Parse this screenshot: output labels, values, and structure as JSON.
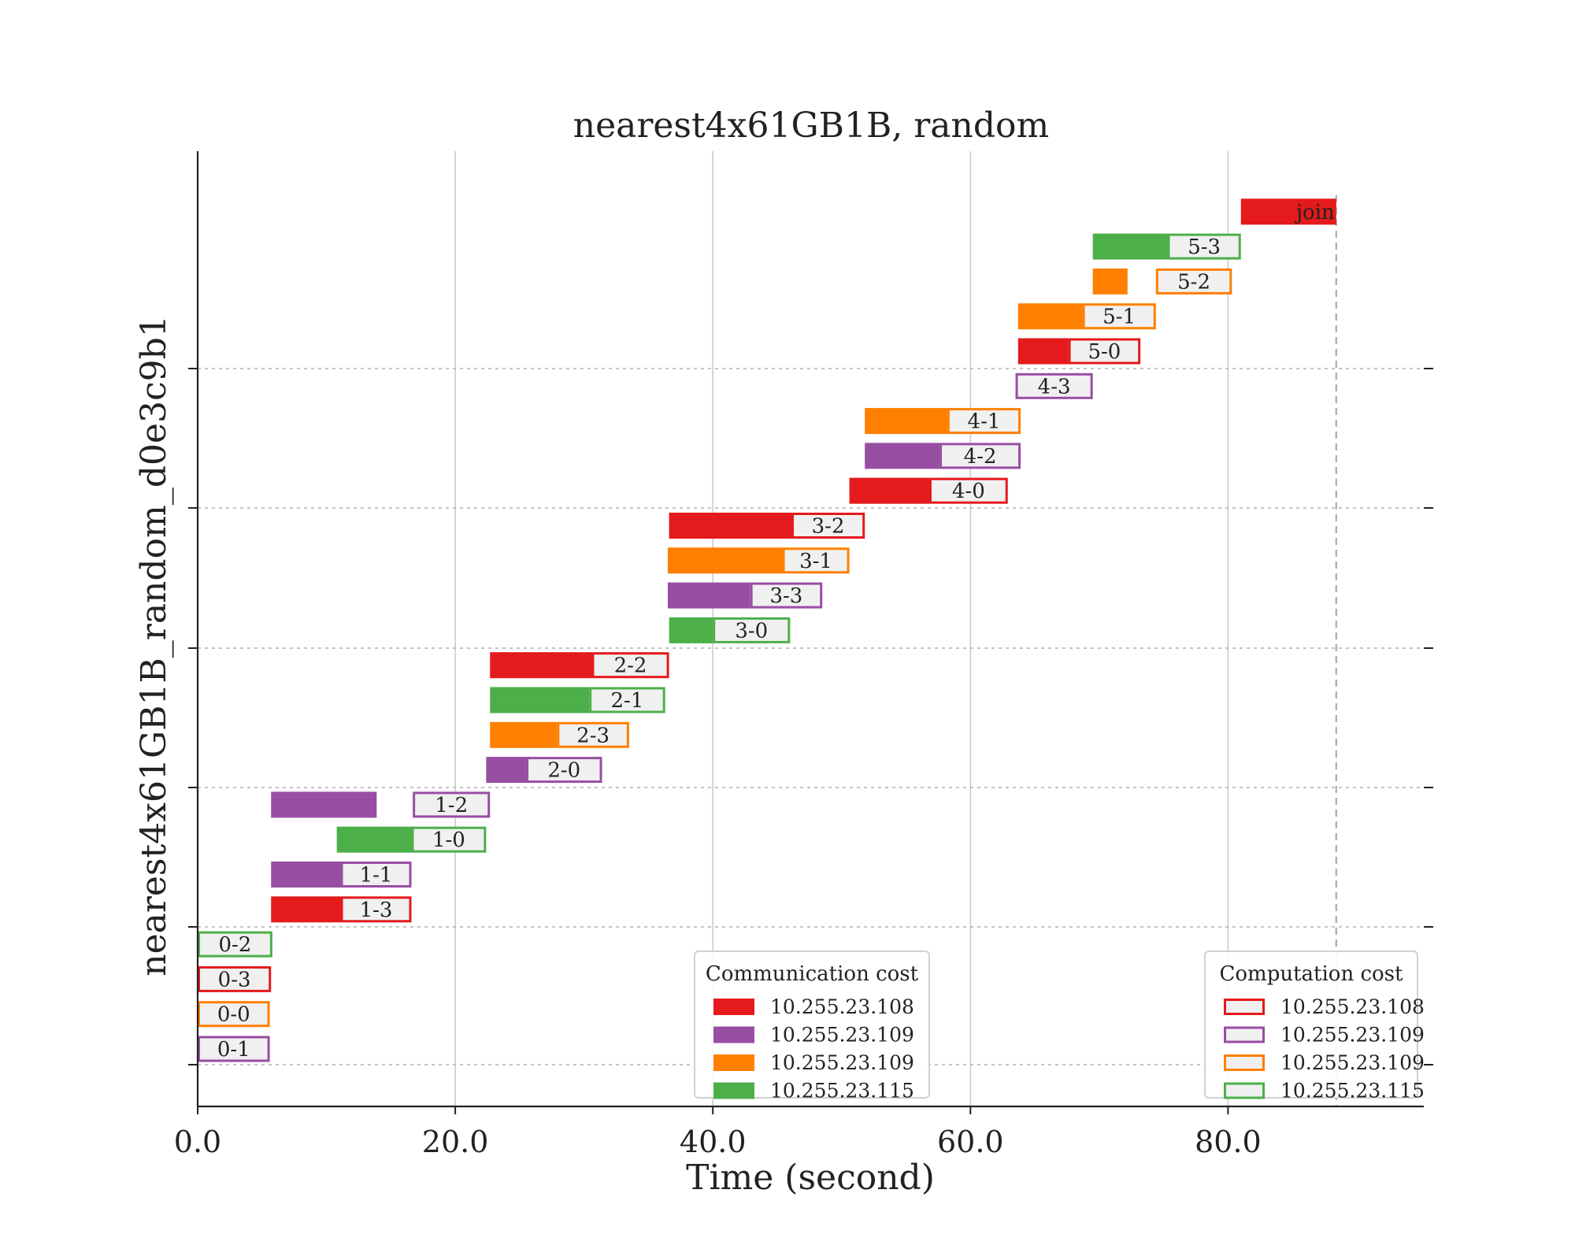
{
  "chart_data": {
    "type": "gantt",
    "title": "nearest4x61GB1B, random",
    "xlabel": "Time (second)",
    "ylabel": "nearest4x61GB1B_random_d0e3c9b1",
    "xlim": [
      0,
      95.2
    ],
    "xticks": [
      0,
      20,
      40,
      60,
      80
    ],
    "xtick_labels": [
      "0.0",
      "20.0",
      "40.0",
      "60.0",
      "80.0"
    ],
    "grid": {
      "x": "solid",
      "y": "dashed"
    },
    "end_time_marker": 88.4,
    "hosts": [
      {
        "id": "h108",
        "name": "10.255.23.108",
        "color": "#e41a1c"
      },
      {
        "id": "h109p",
        "name": "10.255.23.109",
        "color": "#984ea3"
      },
      {
        "id": "h109o",
        "name": "10.255.23.109",
        "color": "#ff7f00"
      },
      {
        "id": "h115",
        "name": "10.255.23.115",
        "color": "#4daf4a"
      }
    ],
    "tasks": [
      {
        "label": "0-1",
        "host": "h109p",
        "comm": [
          0.0,
          0.0
        ],
        "comp": [
          0.0,
          5.6
        ]
      },
      {
        "label": "0-0",
        "host": "h109o",
        "comm": [
          0.0,
          0.0
        ],
        "comp": [
          0.0,
          5.6
        ]
      },
      {
        "label": "0-3",
        "host": "h108",
        "comm": [
          0.0,
          0.0
        ],
        "comp": [
          0.0,
          5.7
        ]
      },
      {
        "label": "0-2",
        "host": "h115",
        "comm": [
          0.0,
          0.0
        ],
        "comp": [
          0.0,
          5.8
        ]
      },
      {
        "label": "1-3",
        "host": "h108",
        "comm": [
          5.7,
          11.1
        ],
        "comp": [
          11.1,
          16.6
        ]
      },
      {
        "label": "1-1",
        "host": "h109p",
        "comm": [
          5.7,
          11.1
        ],
        "comp": [
          11.1,
          16.6
        ]
      },
      {
        "label": "1-0",
        "host": "h115",
        "comm": [
          10.8,
          16.6
        ],
        "comp": [
          16.6,
          22.4
        ]
      },
      {
        "label": "1-2",
        "host": "h109p",
        "comm": [
          5.7,
          13.9
        ],
        "comp": [
          16.7,
          22.7
        ]
      },
      {
        "label": "2-0",
        "host": "h109p",
        "comm": [
          22.4,
          25.5
        ],
        "comp": [
          25.5,
          31.4
        ]
      },
      {
        "label": "2-3",
        "host": "h109o",
        "comm": [
          22.7,
          27.9
        ],
        "comp": [
          27.9,
          33.5
        ]
      },
      {
        "label": "2-1",
        "host": "h115",
        "comm": [
          22.7,
          30.4
        ],
        "comp": [
          30.4,
          36.3
        ]
      },
      {
        "label": "2-2",
        "host": "h108",
        "comm": [
          22.7,
          30.6
        ],
        "comp": [
          30.6,
          36.6
        ]
      },
      {
        "label": "3-0",
        "host": "h115",
        "comm": [
          36.6,
          40.0
        ],
        "comp": [
          40.0,
          46.0
        ]
      },
      {
        "label": "3-3",
        "host": "h109p",
        "comm": [
          36.5,
          42.9
        ],
        "comp": [
          42.9,
          48.5
        ]
      },
      {
        "label": "3-1",
        "host": "h109o",
        "comm": [
          36.5,
          45.4
        ],
        "comp": [
          45.4,
          50.6
        ]
      },
      {
        "label": "3-2",
        "host": "h108",
        "comm": [
          36.6,
          46.1
        ],
        "comp": [
          46.1,
          51.8
        ]
      },
      {
        "label": "4-0",
        "host": "h108",
        "comm": [
          50.6,
          56.8
        ],
        "comp": [
          56.8,
          62.9
        ]
      },
      {
        "label": "4-2",
        "host": "h109p",
        "comm": [
          51.8,
          57.6
        ],
        "comp": [
          57.6,
          63.9
        ]
      },
      {
        "label": "4-1",
        "host": "h109o",
        "comm": [
          51.8,
          58.2
        ],
        "comp": [
          58.2,
          63.9
        ]
      },
      {
        "label": "4-3",
        "host": "h109p",
        "comm": [
          0.0,
          0.0
        ],
        "comp": [
          63.5,
          69.5
        ]
      },
      {
        "label": "5-0",
        "host": "h108",
        "comm": [
          63.7,
          67.6
        ],
        "comp": [
          67.6,
          73.2
        ]
      },
      {
        "label": "5-1",
        "host": "h109o",
        "comm": [
          63.7,
          68.7
        ],
        "comp": [
          68.7,
          74.4
        ]
      },
      {
        "label": "5-2",
        "host": "h109o",
        "comm": [
          69.5,
          72.2
        ],
        "comp": [
          74.4,
          80.3
        ]
      },
      {
        "label": "5-3",
        "host": "h115",
        "comm": [
          69.5,
          75.3
        ],
        "comp": [
          75.3,
          81.0
        ]
      },
      {
        "label": "join",
        "host": "h108",
        "comm": [
          81.0,
          88.4
        ],
        "comp": null
      }
    ],
    "legends": [
      {
        "title": "Communication cost",
        "style": "filled",
        "position": "lower-center",
        "entries": [
          "10.255.23.108",
          "10.255.23.109",
          "10.255.23.109",
          "10.255.23.115"
        ]
      },
      {
        "title": "Computation cost",
        "style": "outlined",
        "position": "lower-right",
        "entries": [
          "10.255.23.108",
          "10.255.23.109",
          "10.255.23.109",
          "10.255.23.115"
        ]
      }
    ]
  }
}
